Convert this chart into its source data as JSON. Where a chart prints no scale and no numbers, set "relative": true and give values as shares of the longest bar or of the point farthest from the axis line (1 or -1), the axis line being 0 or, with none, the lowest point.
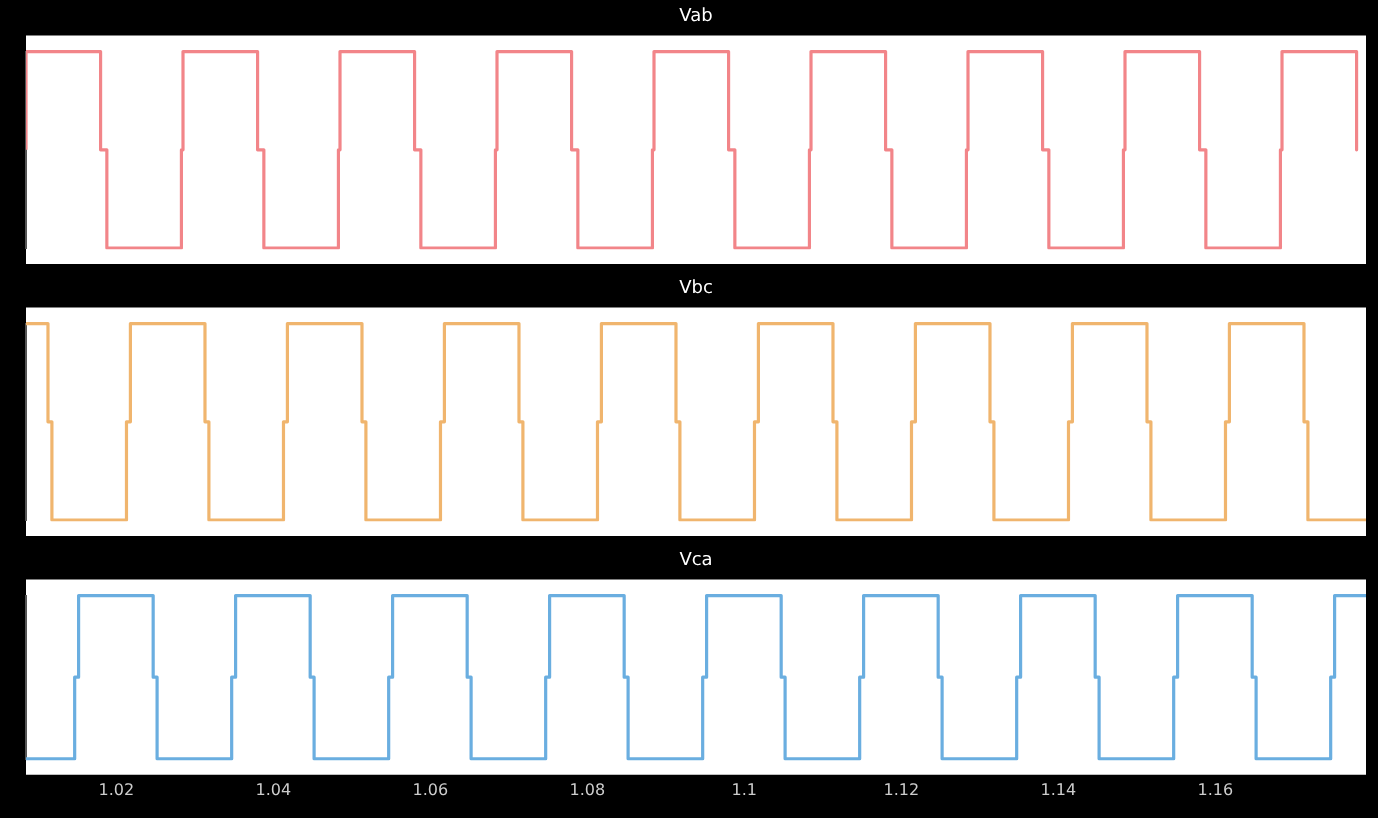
{
  "chart_data": [
    {
      "type": "line",
      "title": "Vab",
      "relative": true,
      "grid": false,
      "legend": false,
      "tick_labels": false,
      "marker": "none",
      "xlim": [
        1.0085,
        1.1792
      ],
      "xticks": [
        1.02,
        1.04,
        1.06,
        1.08,
        1.1,
        1.12,
        1.14,
        1.16
      ],
      "series": [
        {
          "color": "#f28589",
          "x": [
            1.0085,
            1.0085,
            1.018,
            1.018,
            1.0188,
            1.0188,
            1.0283,
            1.0283,
            1.0285,
            1.0285,
            1.038,
            1.038,
            1.0388,
            1.0388,
            1.0483,
            1.0483,
            1.0485,
            1.0485,
            1.058,
            1.058,
            1.0588,
            1.0588,
            1.0683,
            1.0683,
            1.0685,
            1.0685,
            1.078,
            1.078,
            1.0788,
            1.0788,
            1.0883,
            1.0883,
            1.0885,
            1.0885,
            1.098,
            1.098,
            1.0988,
            1.0988,
            1.1083,
            1.1083,
            1.1085,
            1.1085,
            1.118,
            1.118,
            1.1188,
            1.1188,
            1.1283,
            1.1283,
            1.1285,
            1.1285,
            1.138,
            1.138,
            1.1388,
            1.1388,
            1.1483,
            1.1483,
            1.1485,
            1.1485,
            1.158,
            1.158,
            1.1588,
            1.1588,
            1.1683,
            1.1683,
            1.1685,
            1.1685,
            1.178,
            1.178
          ],
          "values": [
            0.5,
            1,
            1,
            0.5,
            0.5,
            0,
            0,
            0.5,
            0.5,
            1,
            1,
            0.5,
            0.5,
            0,
            0,
            0.5,
            0.5,
            1,
            1,
            0.5,
            0.5,
            0,
            0,
            0.5,
            0.5,
            1,
            1,
            0.5,
            0.5,
            0,
            0,
            0.5,
            0.5,
            1,
            1,
            0.5,
            0.5,
            0,
            0,
            0.5,
            0.5,
            1,
            1,
            0.5,
            0.5,
            0,
            0,
            0.5,
            0.5,
            1,
            1,
            0.5,
            0.5,
            0,
            0,
            0.5,
            0.5,
            1,
            1,
            0.5,
            0.5,
            0,
            0,
            0.5,
            0.5,
            1,
            1,
            0.5
          ]
        }
      ]
    },
    {
      "type": "line",
      "title": "Vbc",
      "relative": true,
      "grid": false,
      "legend": false,
      "tick_labels": false,
      "marker": "none",
      "xlim": [
        1.0085,
        1.1792
      ],
      "xticks": [
        1.02,
        1.04,
        1.06,
        1.08,
        1.1,
        1.12,
        1.14,
        1.16
      ],
      "series": [
        {
          "color": "#f0b56e",
          "x": [
            1.0085,
            1.0113,
            1.0113,
            1.0118,
            1.0118,
            1.0213,
            1.0213,
            1.0218,
            1.0218,
            1.0313,
            1.0313,
            1.0318,
            1.0318,
            1.0413,
            1.0413,
            1.0418,
            1.0418,
            1.0513,
            1.0513,
            1.0518,
            1.0518,
            1.0613,
            1.0613,
            1.0618,
            1.0618,
            1.0713,
            1.0713,
            1.0718,
            1.0718,
            1.0813,
            1.0813,
            1.0818,
            1.0818,
            1.0913,
            1.0913,
            1.0918,
            1.0918,
            1.1013,
            1.1013,
            1.1018,
            1.1018,
            1.1113,
            1.1113,
            1.1118,
            1.1118,
            1.1213,
            1.1213,
            1.1218,
            1.1218,
            1.1313,
            1.1313,
            1.1318,
            1.1318,
            1.1413,
            1.1413,
            1.1418,
            1.1418,
            1.1513,
            1.1513,
            1.1518,
            1.1518,
            1.1613,
            1.1613,
            1.1618,
            1.1618,
            1.1713,
            1.1713,
            1.1718,
            1.1718,
            1.1792
          ],
          "values": [
            1,
            1,
            0.5,
            0.5,
            0,
            0,
            0.5,
            0.5,
            1,
            1,
            0.5,
            0.5,
            0,
            0,
            0.5,
            0.5,
            1,
            1,
            0.5,
            0.5,
            0,
            0,
            0.5,
            0.5,
            1,
            1,
            0.5,
            0.5,
            0,
            0,
            0.5,
            0.5,
            1,
            1,
            0.5,
            0.5,
            0,
            0,
            0.5,
            0.5,
            1,
            1,
            0.5,
            0.5,
            0,
            0,
            0.5,
            0.5,
            1,
            1,
            0.5,
            0.5,
            0,
            0,
            0.5,
            0.5,
            1,
            1,
            0.5,
            0.5,
            0,
            0,
            0.5,
            0.5,
            1,
            1,
            0.5,
            0.5,
            0,
            0
          ]
        }
      ]
    },
    {
      "type": "line",
      "title": "Vca",
      "relative": true,
      "grid": false,
      "legend": false,
      "tick_labels": "x",
      "marker": "none",
      "xlim": [
        1.0085,
        1.1792
      ],
      "xticks": [
        1.02,
        1.04,
        1.06,
        1.08,
        1.1,
        1.12,
        1.14,
        1.16
      ],
      "series": [
        {
          "color": "#6aaee0",
          "x": [
            1.0085,
            1.0147,
            1.0147,
            1.0152,
            1.0152,
            1.0247,
            1.0247,
            1.0252,
            1.0252,
            1.0347,
            1.0347,
            1.0352,
            1.0352,
            1.0447,
            1.0447,
            1.0452,
            1.0452,
            1.0547,
            1.0547,
            1.0552,
            1.0552,
            1.0647,
            1.0647,
            1.0652,
            1.0652,
            1.0747,
            1.0747,
            1.0752,
            1.0752,
            1.0847,
            1.0847,
            1.0852,
            1.0852,
            1.0947,
            1.0947,
            1.0952,
            1.0952,
            1.1047,
            1.1047,
            1.1052,
            1.1052,
            1.1147,
            1.1147,
            1.1152,
            1.1152,
            1.1247,
            1.1247,
            1.1252,
            1.1252,
            1.1347,
            1.1347,
            1.1352,
            1.1352,
            1.1447,
            1.1447,
            1.1452,
            1.1452,
            1.1547,
            1.1547,
            1.1552,
            1.1552,
            1.1647,
            1.1647,
            1.1652,
            1.1652,
            1.1747,
            1.1747,
            1.1752,
            1.1752,
            1.1792
          ],
          "values": [
            0,
            0,
            0.5,
            0.5,
            1,
            1,
            0.5,
            0.5,
            0,
            0,
            0.5,
            0.5,
            1,
            1,
            0.5,
            0.5,
            0,
            0,
            0.5,
            0.5,
            1,
            1,
            0.5,
            0.5,
            0,
            0,
            0.5,
            0.5,
            1,
            1,
            0.5,
            0.5,
            0,
            0,
            0.5,
            0.5,
            1,
            1,
            0.5,
            0.5,
            0,
            0,
            0.5,
            0.5,
            1,
            1,
            0.5,
            0.5,
            0,
            0,
            0.5,
            0.5,
            1,
            1,
            0.5,
            0.5,
            0,
            0,
            0.5,
            0.5,
            1,
            1,
            0.5,
            0.5,
            0,
            0,
            0.5,
            0.5,
            1,
            1
          ]
        }
      ]
    }
  ]
}
